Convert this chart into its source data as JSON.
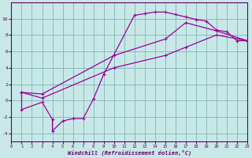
{
  "xlabel": "Windchill (Refroidissement éolien,°C)",
  "bg_color": "#c8e8e8",
  "line_color": "#990099",
  "grid_color": "#88bbbb",
  "xlim": [
    0,
    23
  ],
  "ylim": [
    -5,
    12
  ],
  "xticks": [
    0,
    1,
    2,
    3,
    4,
    5,
    6,
    7,
    8,
    9,
    10,
    11,
    12,
    13,
    14,
    15,
    16,
    17,
    18,
    19,
    20,
    21,
    22,
    23
  ],
  "yticks": [
    -4,
    -2,
    0,
    2,
    4,
    6,
    8,
    10
  ],
  "curve1_x": [
    1,
    1,
    3,
    4,
    4,
    5,
    6,
    7,
    8,
    9,
    12,
    13,
    14,
    15,
    16,
    17,
    18,
    19,
    20,
    21,
    22,
    23
  ],
  "curve1_y": [
    1.0,
    -1.1,
    -0.2,
    -2.3,
    -3.7,
    -2.5,
    -2.2,
    -2.2,
    0.2,
    3.2,
    10.4,
    10.6,
    10.8,
    10.8,
    10.5,
    10.2,
    9.9,
    9.7,
    8.6,
    8.4,
    7.3,
    7.3
  ],
  "curve2_x": [
    1,
    3,
    10,
    15,
    17,
    20,
    23
  ],
  "curve2_y": [
    1.0,
    0.3,
    4.0,
    5.5,
    6.5,
    8.0,
    7.3
  ],
  "curve3_x": [
    1,
    3,
    10,
    15,
    17,
    20,
    23
  ],
  "curve3_y": [
    1.0,
    0.8,
    5.5,
    7.5,
    9.5,
    8.5,
    7.3
  ]
}
